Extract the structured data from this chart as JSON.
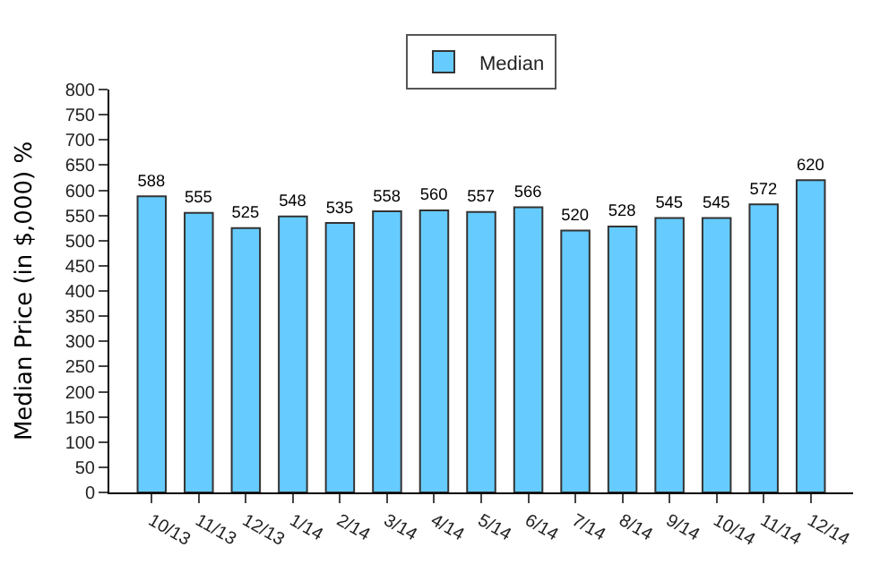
{
  "chart_data": {
    "type": "bar",
    "ylabel": "Median Price (in $,000) %",
    "categories": [
      "10/13",
      "11/13",
      "12/13",
      "1/14",
      "2/14",
      "3/14",
      "4/14",
      "5/14",
      "6/14",
      "7/14",
      "8/14",
      "9/14",
      "10/14",
      "11/14",
      "12/14"
    ],
    "series": [
      {
        "name": "Median",
        "color": "#66ccff",
        "values": [
          588,
          555,
          525,
          548,
          535,
          558,
          560,
          557,
          566,
          520,
          528,
          545,
          545,
          572,
          620
        ]
      }
    ],
    "ylim": [
      0,
      800
    ],
    "yticks": [
      0,
      50,
      100,
      150,
      200,
      250,
      300,
      350,
      400,
      450,
      500,
      550,
      600,
      650,
      700,
      750,
      800
    ],
    "data_labels": true,
    "legend": "top",
    "grid": false
  }
}
